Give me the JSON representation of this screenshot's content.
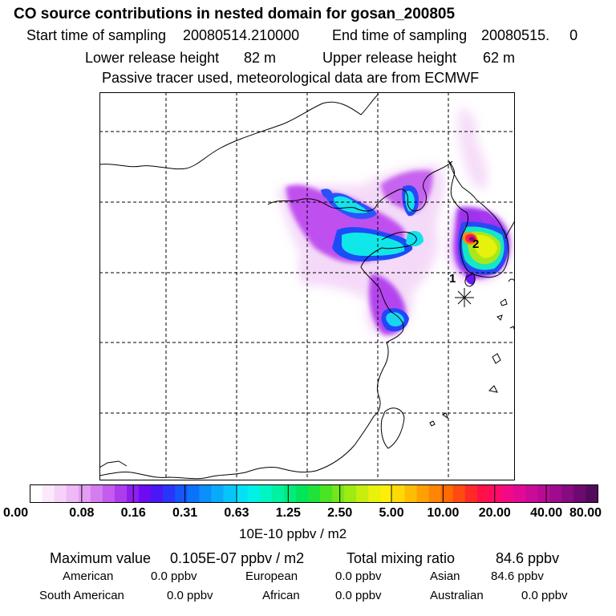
{
  "title": "CO  source contributions in nested domain for gosan_200805",
  "start_label": "Start time of sampling",
  "start_value": "20080514.210000",
  "end_label": "End time of sampling",
  "end_value": "20080515.     0",
  "lower_label": "Lower release height",
  "lower_value": "82 m",
  "upper_label": "Upper release height",
  "upper_value": "62 m",
  "tracer_note": "Passive tracer used, meteorological data are from ECMWF",
  "map": {
    "receptor_label": "1",
    "source_label": "2"
  },
  "colorbar": {
    "ticks": [
      "0.00",
      "0.08",
      "0.16",
      "0.31",
      "0.63",
      "1.25",
      "2.50",
      "5.00",
      "10.00",
      "20.00",
      "40.00",
      "80.00"
    ],
    "unit": "10E-10 ppbv / m2",
    "colors": [
      "#ffffff",
      "#fbe8fb",
      "#f6d2f8",
      "#efb8f6",
      "#e39ef3",
      "#d47df1",
      "#c35cef",
      "#ae3cee",
      "#8e1df0",
      "#6b0cf2",
      "#4a18f6",
      "#2a35fa",
      "#1456fb",
      "#0a72fb",
      "#0b8ffb",
      "#0aaafb",
      "#07c5fb",
      "#05e0f7",
      "#00f2e6",
      "#00f5c4",
      "#00f2a0",
      "#00ec7c",
      "#00e559",
      "#1ee33b",
      "#4ae424",
      "#75e61a",
      "#a0ea14",
      "#c8ee10",
      "#e8f20c",
      "#ffef08",
      "#ffd805",
      "#ffbc04",
      "#ffa003",
      "#ff8502",
      "#ff6a02",
      "#ff4a10",
      "#ff2a28",
      "#ff1048",
      "#ff0a68",
      "#f20a84",
      "#e20a95",
      "#cc0a98",
      "#b80a96",
      "#a00a8e",
      "#860a80",
      "#6c0a6e",
      "#520a5a"
    ]
  },
  "stats": {
    "max_label": "Maximum value",
    "max_value": "0.105E-07 ppbv / m2",
    "total_label": "Total mixing ratio",
    "total_value": "84.6 ppbv",
    "regions": [
      {
        "name": "American",
        "value": "0.0 ppbv"
      },
      {
        "name": "European",
        "value": "0.0 ppbv"
      },
      {
        "name": "Asian",
        "value": "84.6 ppbv"
      },
      {
        "name": "South American",
        "value": "0.0 ppbv"
      },
      {
        "name": "African",
        "value": "0.0 ppbv"
      },
      {
        "name": "Australian",
        "value": "0.0 ppbv"
      }
    ]
  }
}
